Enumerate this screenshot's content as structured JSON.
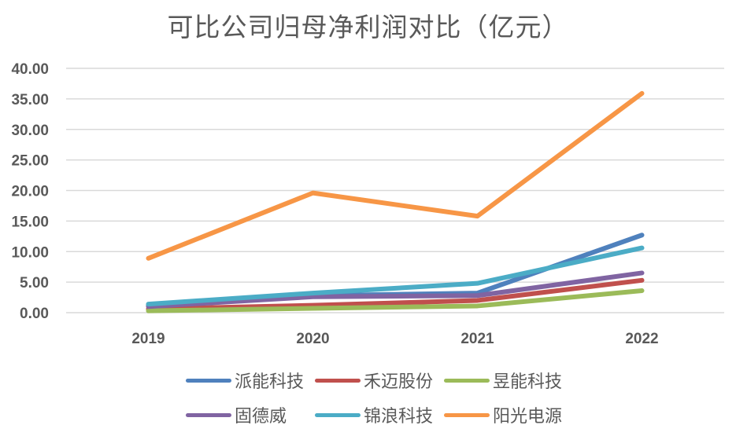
{
  "chart_data": {
    "type": "line",
    "title": "可比公司归母净利润对比（亿元）",
    "xlabel": "",
    "ylabel": "",
    "categories": [
      "2019",
      "2020",
      "2021",
      "2022"
    ],
    "ylim": [
      0,
      40
    ],
    "yticks": [
      "0.00",
      "5.00",
      "10.00",
      "15.00",
      "20.00",
      "25.00",
      "30.00",
      "35.00",
      "40.00"
    ],
    "grid": true,
    "legend_position": "bottom",
    "series": [
      {
        "name": "派能科技",
        "color": "#4F81BD",
        "values": [
          1.2,
          2.8,
          3.2,
          12.7
        ]
      },
      {
        "name": "禾迈股份",
        "color": "#C0504D",
        "values": [
          0.6,
          1.2,
          2.0,
          5.3
        ]
      },
      {
        "name": "昱能科技",
        "color": "#9BBB59",
        "values": [
          0.3,
          0.7,
          1.1,
          3.6
        ]
      },
      {
        "name": "固德威",
        "color": "#8064A2",
        "values": [
          1.0,
          2.6,
          2.8,
          6.5
        ]
      },
      {
        "name": "锦浪科技",
        "color": "#4BACC6",
        "values": [
          1.4,
          3.2,
          4.8,
          10.6
        ]
      },
      {
        "name": "阳光电源",
        "color": "#F79646",
        "values": [
          8.9,
          19.6,
          15.8,
          35.9
        ]
      }
    ]
  }
}
